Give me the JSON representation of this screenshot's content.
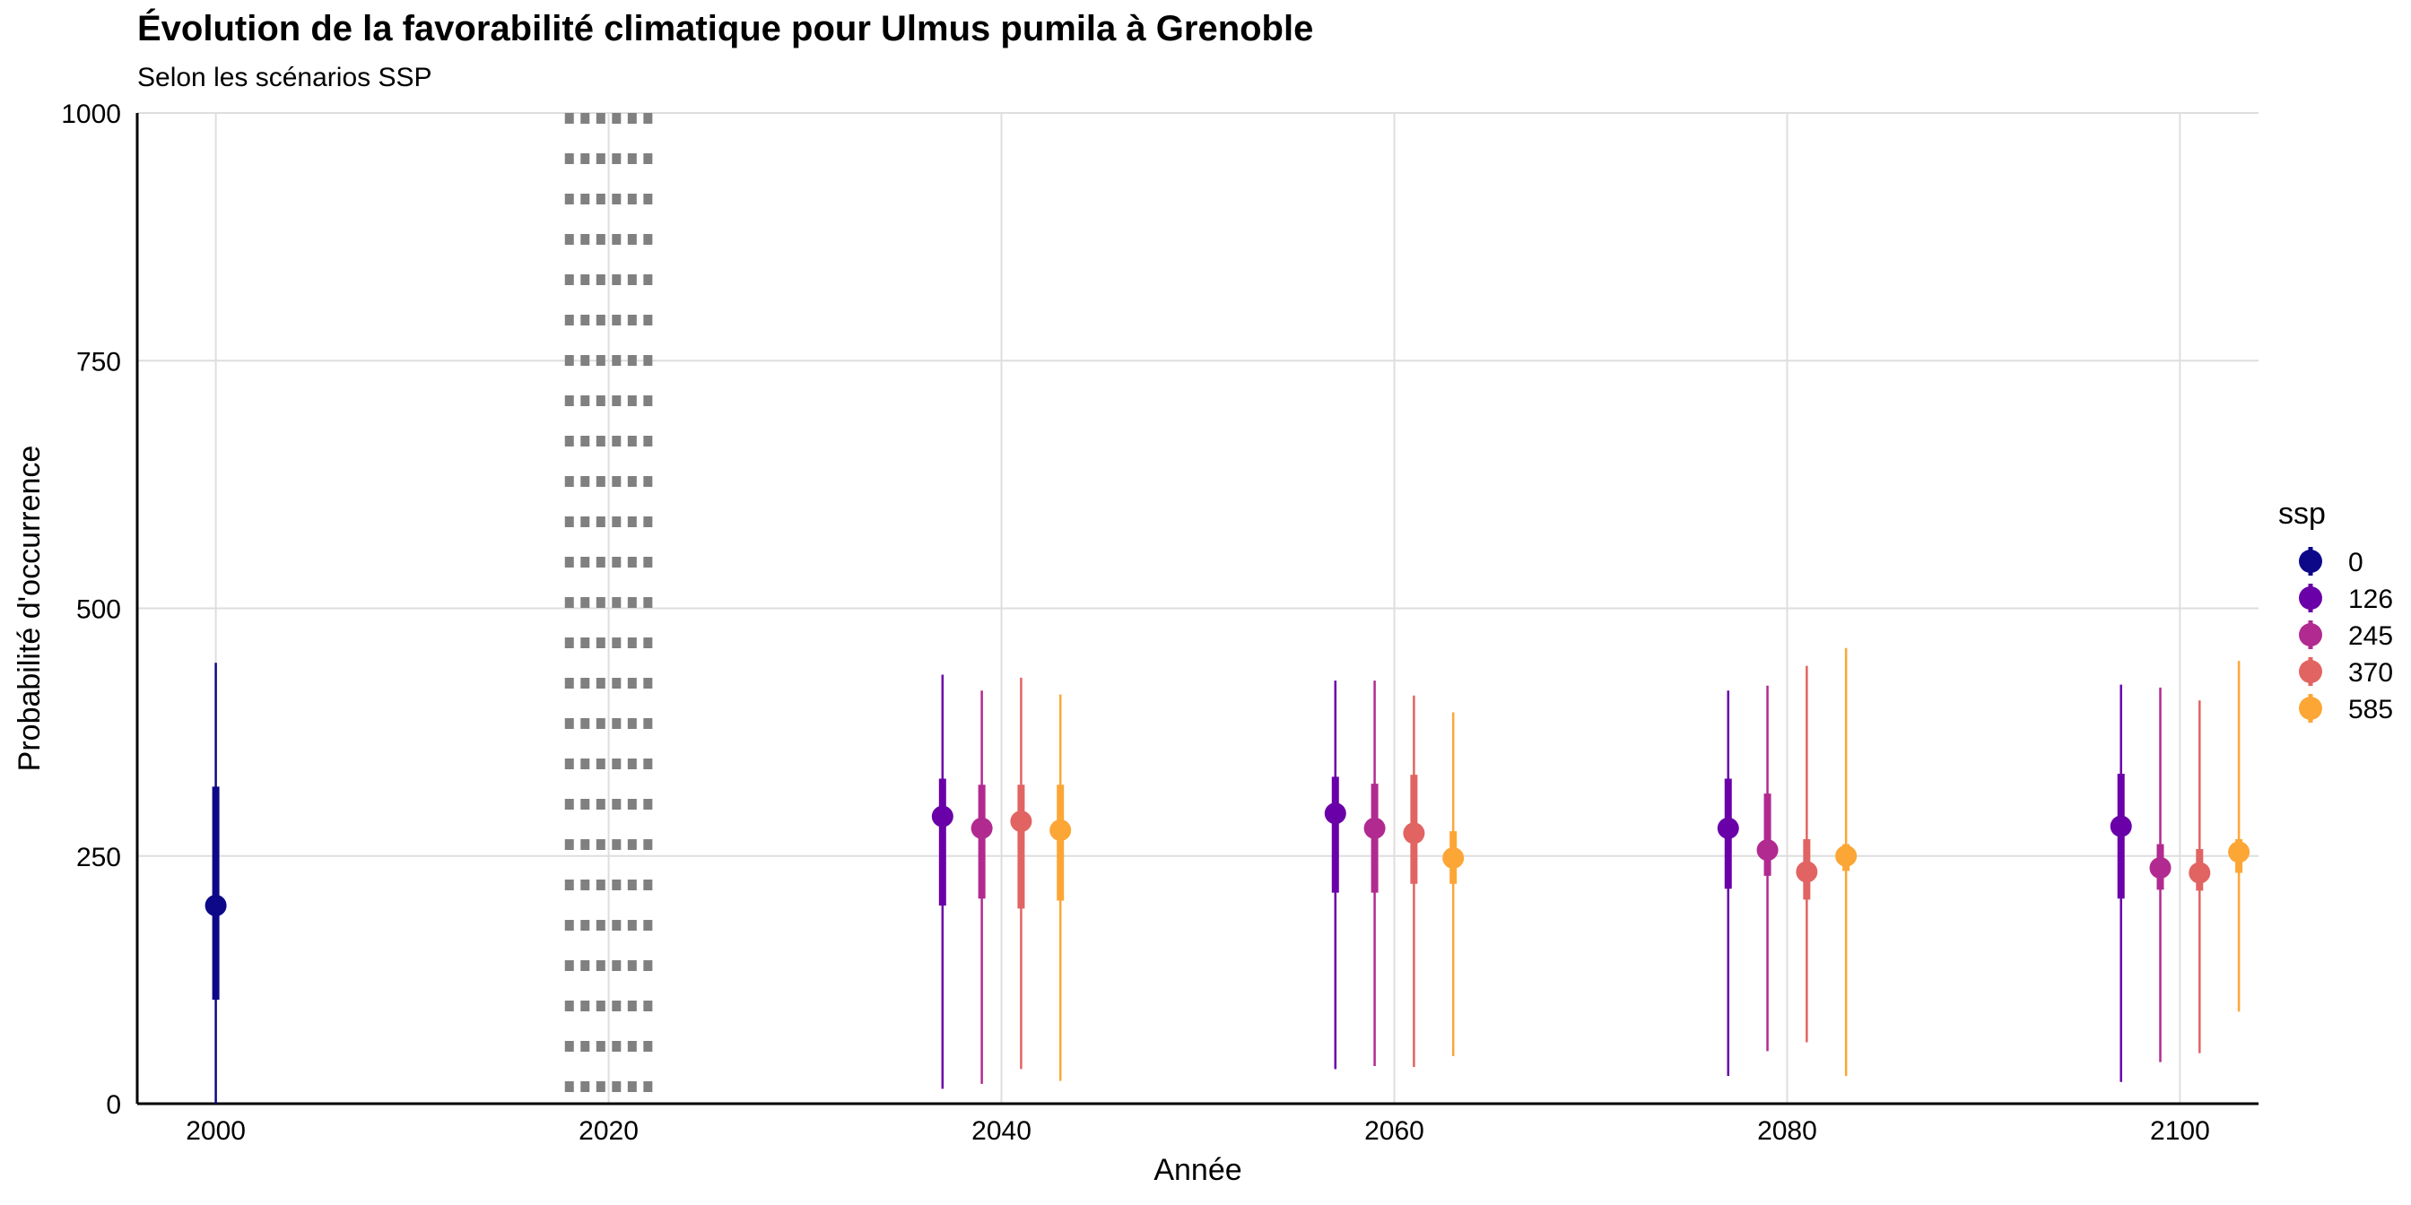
{
  "title": "Évolution de la favorabilité climatique pour Ulmus pumila à Grenoble",
  "subtitle": "Selon les scénarios SSP",
  "chart_data": {
    "type": "pointrange",
    "title": "Évolution de la favorabilité climatique pour Ulmus pumila à Grenoble",
    "subtitle": "Selon les scénarios SSP",
    "xlabel": "Année",
    "ylabel": "Probabilité d'occurrence",
    "xlim": [
      1996,
      2104
    ],
    "ylim": [
      0,
      1000
    ],
    "x_ticks": [
      2000,
      2020,
      2040,
      2060,
      2080,
      2100
    ],
    "y_ticks": [
      0,
      250,
      500,
      750,
      1000
    ],
    "grid": true,
    "legend_title": "ssp",
    "legend_position": "right",
    "reference_band": {
      "x_from": 2018,
      "x_to": 2022,
      "style": "dotted grey"
    },
    "series": [
      {
        "name": "0",
        "color": "#0d0887",
        "points": [
          {
            "x": 2000,
            "y": 200,
            "inner": [
              105,
              320
            ],
            "outer": [
              0,
              445
            ]
          }
        ]
      },
      {
        "name": "126",
        "color": "#6a00a8",
        "points": [
          {
            "x": 2037,
            "y": 290,
            "inner": [
              200,
              328
            ],
            "outer": [
              15,
              433
            ]
          },
          {
            "x": 2057,
            "y": 293,
            "inner": [
              213,
              330
            ],
            "outer": [
              35,
              427
            ]
          },
          {
            "x": 2077,
            "y": 278,
            "inner": [
              217,
              328
            ],
            "outer": [
              28,
              417
            ]
          },
          {
            "x": 2097,
            "y": 280,
            "inner": [
              207,
              333
            ],
            "outer": [
              22,
              423
            ]
          }
        ]
      },
      {
        "name": "245",
        "color": "#b12a90",
        "points": [
          {
            "x": 2039,
            "y": 278,
            "inner": [
              207,
              322
            ],
            "outer": [
              20,
              417
            ]
          },
          {
            "x": 2059,
            "y": 278,
            "inner": [
              213,
              323
            ],
            "outer": [
              38,
              427
            ]
          },
          {
            "x": 2079,
            "y": 256,
            "inner": [
              230,
              313
            ],
            "outer": [
              53,
              422
            ]
          },
          {
            "x": 2099,
            "y": 238,
            "inner": [
              216,
              262
            ],
            "outer": [
              42,
              420
            ]
          }
        ]
      },
      {
        "name": "370",
        "color": "#e16462",
        "points": [
          {
            "x": 2041,
            "y": 285,
            "inner": [
              197,
              322
            ],
            "outer": [
              35,
              430
            ]
          },
          {
            "x": 2061,
            "y": 273,
            "inner": [
              222,
              332
            ],
            "outer": [
              37,
              412
            ]
          },
          {
            "x": 2081,
            "y": 234,
            "inner": [
              206,
              267
            ],
            "outer": [
              62,
              442
            ]
          },
          {
            "x": 2101,
            "y": 233,
            "inner": [
              215,
              257
            ],
            "outer": [
              51,
              407
            ]
          }
        ]
      },
      {
        "name": "585",
        "color": "#fca636",
        "points": [
          {
            "x": 2043,
            "y": 276,
            "inner": [
              205,
              322
            ],
            "outer": [
              23,
              413
            ]
          },
          {
            "x": 2063,
            "y": 248,
            "inner": [
              222,
              275
            ],
            "outer": [
              48,
              395
            ]
          },
          {
            "x": 2083,
            "y": 250,
            "inner": [
              235,
              262
            ],
            "outer": [
              28,
              460
            ]
          },
          {
            "x": 2103,
            "y": 254,
            "inner": [
              233,
              267
            ],
            "outer": [
              93,
              447
            ]
          }
        ]
      }
    ]
  }
}
